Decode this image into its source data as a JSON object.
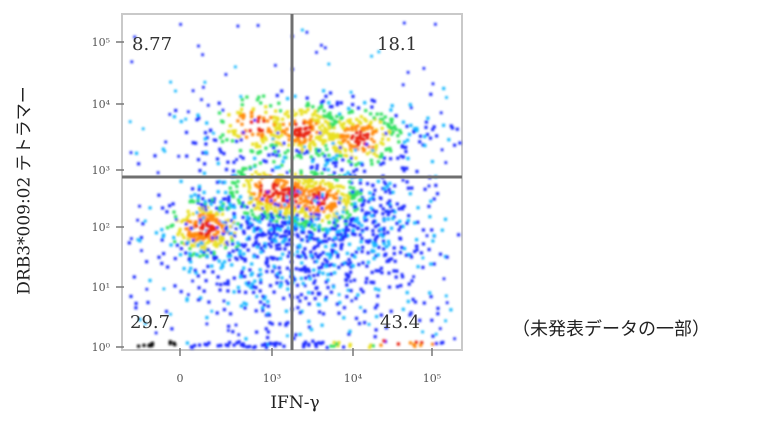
{
  "chart_data": {
    "type": "scatter",
    "plot_kind": "flow-cytometry density plot (pseudocolor)",
    "xlabel": "IFN-γ",
    "ylabel": "DRB3*009:02 テトラマー",
    "x_ticks": [
      "0",
      "10³",
      "10⁴",
      "10⁵"
    ],
    "y_ticks": [
      "10⁰",
      "10¹",
      "10²",
      "10³",
      "10⁴",
      "10⁵"
    ],
    "x_gate": "10³",
    "y_gate": "10²·⁷",
    "quadrants": [
      {
        "position": "top-left",
        "label": "8.77"
      },
      {
        "position": "top-right",
        "label": "18.1"
      },
      {
        "position": "bottom-left",
        "label": "29.7"
      },
      {
        "position": "bottom-right",
        "label": "43.4"
      }
    ],
    "density_colors": [
      "#1c2cff",
      "#18b8ff",
      "#30e060",
      "#e8e020",
      "#ff8a10",
      "#e82010"
    ]
  },
  "note": "（未発表データの一部）"
}
